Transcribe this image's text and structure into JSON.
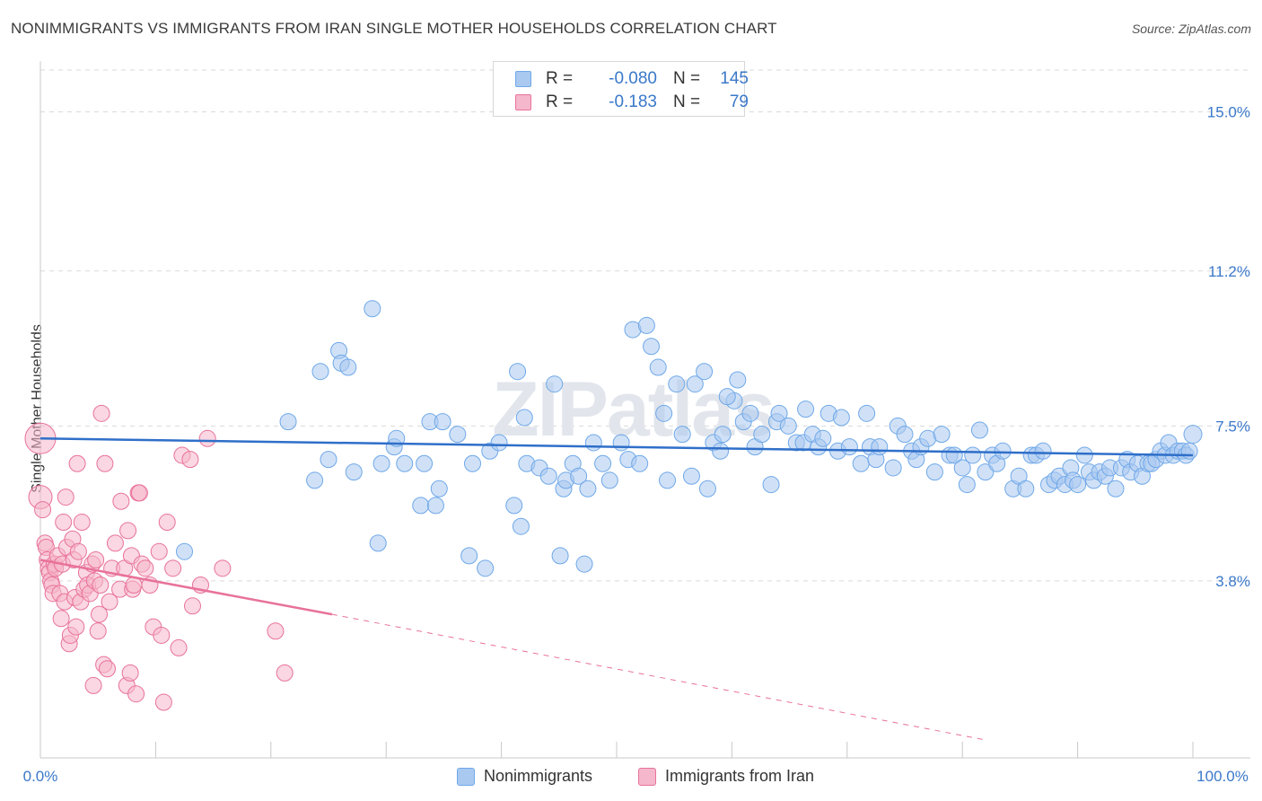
{
  "chart_data": {
    "type": "scatter",
    "title": "NONIMMIGRANTS VS IMMIGRANTS FROM IRAN SINGLE MOTHER HOUSEHOLDS CORRELATION CHART",
    "source": "Source: ZipAtlas.com",
    "xlabel": "",
    "ylabel": "Single Mother Households",
    "xlim": [
      0,
      100
    ],
    "ylim": [
      0,
      16.0
    ],
    "x_tick_labels": [
      "0.0%",
      "100.0%"
    ],
    "y_ticks": [
      3.8,
      7.5,
      11.2,
      15.0
    ],
    "y_tick_labels": [
      "3.8%",
      "7.5%",
      "11.2%",
      "15.0%"
    ],
    "grid": true,
    "watermark": "ZIPatlas",
    "legend_stats": [
      {
        "series": "Nonimmigrants",
        "r_label": "R =",
        "r": "-0.080",
        "n_label": "N =",
        "n": "145"
      },
      {
        "series": "Immigrants from Iran",
        "r_label": "R =",
        "r": "-0.183",
        "n_label": "N =",
        "n": "79"
      }
    ],
    "series": [
      {
        "name": "Nonimmigrants",
        "color": "#6fa8e8",
        "fill": "#a9c9f0",
        "trend": {
          "x0": 0,
          "y0": 7.2,
          "x1": 100,
          "y1": 6.8
        },
        "points": [
          [
            12.5,
            4.5
          ],
          [
            21.5,
            7.6
          ],
          [
            23.8,
            6.2
          ],
          [
            24.3,
            8.8
          ],
          [
            25.0,
            6.7
          ],
          [
            25.9,
            9.3
          ],
          [
            26.1,
            9.0
          ],
          [
            26.7,
            8.9
          ],
          [
            27.2,
            6.4
          ],
          [
            28.8,
            10.3
          ],
          [
            29.3,
            4.7
          ],
          [
            29.6,
            6.6
          ],
          [
            30.7,
            7.0
          ],
          [
            30.9,
            7.2
          ],
          [
            31.6,
            6.6
          ],
          [
            33.0,
            5.6
          ],
          [
            33.3,
            6.6
          ],
          [
            33.8,
            7.6
          ],
          [
            34.3,
            5.6
          ],
          [
            34.6,
            6.0
          ],
          [
            34.9,
            7.6
          ],
          [
            36.2,
            7.3
          ],
          [
            37.2,
            4.4
          ],
          [
            37.5,
            6.6
          ],
          [
            38.6,
            4.1
          ],
          [
            39.0,
            6.9
          ],
          [
            39.8,
            7.1
          ],
          [
            41.1,
            5.6
          ],
          [
            41.4,
            8.8
          ],
          [
            41.7,
            5.1
          ],
          [
            42.0,
            7.7
          ],
          [
            42.2,
            6.6
          ],
          [
            43.3,
            6.5
          ],
          [
            44.1,
            6.3
          ],
          [
            44.6,
            8.5
          ],
          [
            45.1,
            4.4
          ],
          [
            45.4,
            6.0
          ],
          [
            45.6,
            6.2
          ],
          [
            46.2,
            6.6
          ],
          [
            46.7,
            6.3
          ],
          [
            47.2,
            4.2
          ],
          [
            47.5,
            6.0
          ],
          [
            48.0,
            7.1
          ],
          [
            48.8,
            6.6
          ],
          [
            49.4,
            6.2
          ],
          [
            50.4,
            7.1
          ],
          [
            51.0,
            6.7
          ],
          [
            51.4,
            9.8
          ],
          [
            52.0,
            6.6
          ],
          [
            53.0,
            9.4
          ],
          [
            53.6,
            8.9
          ],
          [
            54.1,
            7.8
          ],
          [
            54.4,
            6.2
          ],
          [
            55.2,
            8.5
          ],
          [
            55.7,
            7.3
          ],
          [
            56.5,
            6.3
          ],
          [
            56.8,
            8.5
          ],
          [
            57.6,
            8.8
          ],
          [
            57.9,
            6.0
          ],
          [
            58.4,
            7.1
          ],
          [
            59.0,
            6.9
          ],
          [
            59.2,
            7.3
          ],
          [
            60.2,
            8.1
          ],
          [
            60.5,
            8.6
          ],
          [
            61.0,
            7.6
          ],
          [
            61.6,
            7.8
          ],
          [
            62.0,
            7.0
          ],
          [
            62.6,
            7.3
          ],
          [
            63.4,
            6.1
          ],
          [
            63.9,
            7.6
          ],
          [
            64.1,
            7.8
          ],
          [
            64.9,
            7.5
          ],
          [
            65.6,
            7.1
          ],
          [
            66.2,
            7.1
          ],
          [
            66.4,
            7.9
          ],
          [
            67.0,
            7.3
          ],
          [
            67.5,
            7.0
          ],
          [
            67.9,
            7.2
          ],
          [
            68.4,
            7.8
          ],
          [
            69.2,
            6.9
          ],
          [
            69.5,
            7.7
          ],
          [
            70.2,
            7.0
          ],
          [
            71.2,
            6.6
          ],
          [
            71.7,
            7.8
          ],
          [
            72.0,
            7.0
          ],
          [
            72.5,
            6.7
          ],
          [
            72.8,
            7.0
          ],
          [
            74.0,
            6.5
          ],
          [
            74.4,
            7.5
          ],
          [
            75.0,
            7.3
          ],
          [
            75.6,
            6.9
          ],
          [
            76.0,
            6.7
          ],
          [
            76.4,
            7.0
          ],
          [
            77.0,
            7.2
          ],
          [
            77.6,
            6.4
          ],
          [
            78.2,
            7.3
          ],
          [
            78.9,
            6.8
          ],
          [
            79.3,
            6.8
          ],
          [
            80.0,
            6.5
          ],
          [
            80.4,
            6.1
          ],
          [
            80.9,
            6.8
          ],
          [
            81.5,
            7.4
          ],
          [
            82.0,
            6.4
          ],
          [
            82.6,
            6.8
          ],
          [
            83.0,
            6.6
          ],
          [
            83.5,
            6.9
          ],
          [
            84.4,
            6.0
          ],
          [
            84.9,
            6.3
          ],
          [
            85.5,
            6.0
          ],
          [
            86.0,
            6.8
          ],
          [
            86.4,
            6.8
          ],
          [
            87.0,
            6.9
          ],
          [
            87.5,
            6.1
          ],
          [
            88.0,
            6.2
          ],
          [
            88.4,
            6.3
          ],
          [
            88.9,
            6.1
          ],
          [
            89.4,
            6.5
          ],
          [
            89.6,
            6.2
          ],
          [
            90.0,
            6.1
          ],
          [
            90.6,
            6.8
          ],
          [
            91.0,
            6.4
          ],
          [
            91.4,
            6.2
          ],
          [
            91.9,
            6.4
          ],
          [
            92.4,
            6.3
          ],
          [
            92.8,
            6.5
          ],
          [
            93.3,
            6.0
          ],
          [
            93.8,
            6.5
          ],
          [
            94.3,
            6.7
          ],
          [
            94.6,
            6.4
          ],
          [
            95.2,
            6.6
          ],
          [
            95.6,
            6.3
          ],
          [
            96.1,
            6.6
          ],
          [
            96.4,
            6.6
          ],
          [
            96.8,
            6.7
          ],
          [
            97.2,
            6.9
          ],
          [
            97.6,
            6.8
          ],
          [
            97.9,
            7.1
          ],
          [
            98.3,
            6.8
          ],
          [
            98.7,
            6.9
          ],
          [
            99.1,
            6.9
          ],
          [
            99.4,
            6.8
          ],
          [
            99.7,
            6.9
          ],
          [
            100.0,
            7.3
          ],
          [
            59.6,
            8.2
          ],
          [
            52.6,
            9.9
          ]
        ]
      },
      {
        "name": "Immigrants from Iran",
        "color": "#e8729a",
        "fill": "#f5b7cb",
        "trend": {
          "x0": 0,
          "y0": 4.3,
          "x1": 25.3,
          "y1": 3.0
        },
        "trend_dashed": {
          "x0": 25.3,
          "y0": 3.0,
          "x1": 82.0,
          "y1": 0
        },
        "points": [
          [
            0.0,
            7.2
          ],
          [
            0.0,
            5.8
          ],
          [
            0.2,
            5.5
          ],
          [
            0.4,
            4.7
          ],
          [
            0.5,
            4.6
          ],
          [
            0.6,
            4.3
          ],
          [
            0.7,
            4.1
          ],
          [
            0.8,
            4.0
          ],
          [
            0.9,
            3.8
          ],
          [
            1.0,
            3.7
          ],
          [
            1.1,
            3.5
          ],
          [
            1.2,
            4.2
          ],
          [
            1.3,
            4.1
          ],
          [
            1.5,
            4.4
          ],
          [
            1.7,
            3.5
          ],
          [
            1.8,
            2.9
          ],
          [
            1.9,
            4.2
          ],
          [
            2.0,
            5.2
          ],
          [
            2.1,
            3.3
          ],
          [
            2.2,
            5.8
          ],
          [
            2.3,
            4.6
          ],
          [
            2.5,
            2.3
          ],
          [
            2.6,
            2.5
          ],
          [
            2.8,
            4.8
          ],
          [
            2.9,
            4.3
          ],
          [
            3.0,
            3.4
          ],
          [
            3.1,
            2.7
          ],
          [
            3.2,
            6.6
          ],
          [
            3.3,
            4.5
          ],
          [
            3.5,
            3.3
          ],
          [
            3.6,
            5.2
          ],
          [
            3.8,
            3.6
          ],
          [
            4.0,
            4.0
          ],
          [
            4.1,
            3.7
          ],
          [
            4.3,
            3.5
          ],
          [
            4.5,
            4.2
          ],
          [
            4.6,
            1.3
          ],
          [
            4.7,
            3.8
          ],
          [
            4.8,
            4.3
          ],
          [
            5.0,
            2.6
          ],
          [
            5.1,
            3.0
          ],
          [
            5.2,
            3.7
          ],
          [
            5.3,
            7.8
          ],
          [
            5.5,
            1.8
          ],
          [
            5.6,
            6.6
          ],
          [
            5.8,
            1.7
          ],
          [
            6.0,
            3.3
          ],
          [
            6.2,
            4.1
          ],
          [
            6.5,
            4.7
          ],
          [
            6.9,
            3.6
          ],
          [
            7.0,
            5.7
          ],
          [
            7.3,
            4.1
          ],
          [
            7.5,
            1.3
          ],
          [
            7.6,
            5.0
          ],
          [
            7.8,
            1.6
          ],
          [
            7.9,
            4.4
          ],
          [
            8.0,
            3.6
          ],
          [
            8.1,
            3.7
          ],
          [
            8.3,
            1.1
          ],
          [
            8.5,
            5.9
          ],
          [
            8.6,
            5.9
          ],
          [
            8.8,
            4.2
          ],
          [
            9.1,
            4.1
          ],
          [
            9.5,
            3.7
          ],
          [
            9.8,
            2.7
          ],
          [
            10.3,
            4.5
          ],
          [
            10.5,
            2.5
          ],
          [
            10.7,
            0.9
          ],
          [
            11.0,
            5.2
          ],
          [
            11.5,
            4.1
          ],
          [
            12.0,
            2.2
          ],
          [
            12.3,
            6.8
          ],
          [
            13.0,
            6.7
          ],
          [
            13.2,
            3.2
          ],
          [
            13.9,
            3.7
          ],
          [
            14.5,
            7.2
          ],
          [
            15.8,
            4.1
          ],
          [
            20.4,
            2.6
          ],
          [
            21.2,
            1.6
          ]
        ]
      }
    ]
  },
  "legend_bottom": [
    "Nonimmigrants",
    "Immigrants from Iran"
  ]
}
